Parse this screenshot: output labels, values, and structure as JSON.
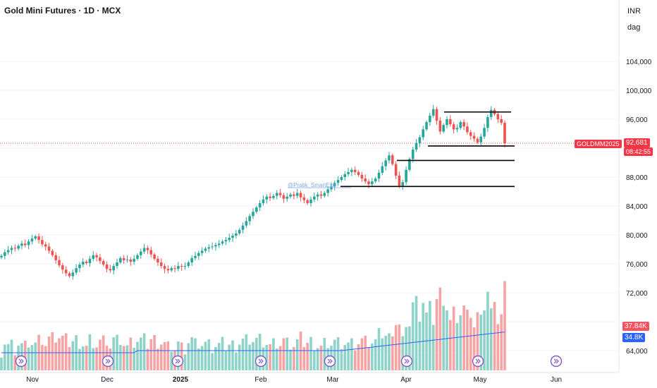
{
  "header": {
    "title": "Gold Mini Futures · 1D · MCX"
  },
  "axis_labels": {
    "currency": "INR",
    "scale_mode": "dag"
  },
  "price_tag": {
    "symbol": "GOLDMM2025",
    "last_price": "92,681",
    "countdown": "08:42:55"
  },
  "volume_tags": {
    "volume": "37.84K",
    "volume_ma": "34.8K"
  },
  "watermark": "@Pratik_SmartEye",
  "colors": {
    "up": "#26a69a",
    "down": "#ef5350",
    "up_vol": "#8ed3c9",
    "down_vol": "#f5a3a3",
    "ma": "#2962ff",
    "level": "#000000",
    "grid": "#f0f3fa",
    "dividend": "#7e57c2"
  },
  "chart_data": {
    "type": "candlestick",
    "price_axis": {
      "ticks": [
        64000,
        68000,
        72000,
        76000,
        80000,
        84000,
        88000,
        92000,
        96000,
        100000,
        104000
      ],
      "tick_labels": [
        "64,000",
        "",
        "72,000",
        "76,000",
        "80,000",
        "84,000",
        "88,000",
        "",
        "96,000",
        "100,000",
        "104,000"
      ]
    },
    "time_axis": {
      "labels": [
        "Nov",
        "Dec",
        "2025",
        "Feb",
        "Mar",
        "Apr",
        "May",
        "Jun"
      ]
    },
    "last_close": 92681,
    "horizontal_levels": [
      97000,
      92300,
      90300,
      86700
    ],
    "candles": [
      77100,
      77600,
      77900,
      78200,
      78100,
      78500,
      78800,
      78600,
      79100,
      79500,
      79800,
      79300,
      78700,
      78400,
      77800,
      77200,
      76500,
      75800,
      75200,
      74700,
      74300,
      74800,
      75400,
      75900,
      76300,
      76100,
      76700,
      77200,
      76900,
      76400,
      75900,
      75300,
      75100,
      75700,
      76200,
      76800,
      76500,
      76600,
      76300,
      76700,
      77200,
      77700,
      78200,
      77900,
      77300,
      76700,
      76200,
      75700,
      75300,
      75100,
      75400,
      75300,
      75700,
      75600,
      75700,
      76200,
      76800,
      77100,
      77500,
      77800,
      78100,
      78300,
      78400,
      78600,
      78800,
      79100,
      79300,
      79600,
      79900,
      80200,
      80700,
      81300,
      81900,
      82600,
      83200,
      83800,
      84400,
      84900,
      85300,
      85100,
      85400,
      85800,
      85500,
      85000,
      85300,
      85600,
      85400,
      85800,
      85200,
      84800,
      84400,
      84900,
      85300,
      85600,
      85400,
      85800,
      86300,
      86700,
      87200,
      87600,
      88000,
      88400,
      88700,
      89000,
      88700,
      88300,
      87800,
      87400,
      87000,
      87400,
      87800,
      88600,
      89500,
      90300,
      91000,
      89800,
      88200,
      86800,
      87300,
      89000,
      90500,
      91800,
      92700,
      93500,
      94600,
      95600,
      96500,
      97400,
      95800,
      94300,
      95200,
      96000,
      95300,
      94600,
      94800,
      95600,
      95000,
      94200,
      93700,
      93300,
      92800,
      93600,
      94800,
      96300,
      97300,
      96700,
      96000,
      95500,
      92681
    ],
    "volume": {
      "unit": "K",
      "last": 37.84,
      "ma_last": 34.8
    },
    "dividend_markers_count": 8
  }
}
